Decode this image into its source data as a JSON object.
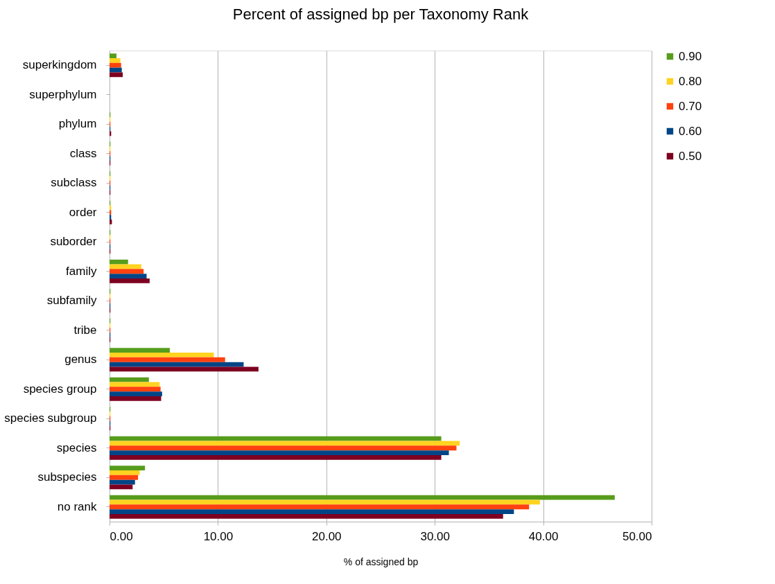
{
  "chart_data": {
    "type": "bar",
    "orientation": "horizontal",
    "title": "Percent of assigned bp per Taxonomy Rank",
    "xlabel": "% of assigned bp",
    "categories": [
      "superkingdom",
      "superphylum",
      "phylum",
      "class",
      "subclass",
      "order",
      "suborder",
      "family",
      "subfamily",
      "tribe",
      "genus",
      "species group",
      "species subgroup",
      "species",
      "subspecies",
      "no rank"
    ],
    "series": [
      {
        "name": "0.90",
        "color": "#579d1c",
        "values": [
          0.64,
          0,
          0.08,
          0.08,
          0.08,
          0.08,
          0.08,
          1.71,
          0.08,
          0.08,
          5.56,
          3.63,
          0.08,
          30.6,
          3.27,
          46.6
        ]
      },
      {
        "name": "0.80",
        "color": "#ffd320",
        "values": [
          1.0,
          0,
          0.08,
          0.08,
          0.08,
          0.15,
          0.08,
          2.93,
          0.08,
          0.08,
          9.62,
          4.62,
          0.08,
          32.3,
          2.78,
          39.7
        ]
      },
      {
        "name": "0.70",
        "color": "#ff420e",
        "values": [
          1.07,
          0,
          0.08,
          0.08,
          0.08,
          0.15,
          0.08,
          3.14,
          0.08,
          0.08,
          10.66,
          4.71,
          0.08,
          32.0,
          2.63,
          38.7
        ]
      },
      {
        "name": "0.60",
        "color": "#004586",
        "values": [
          1.13,
          0,
          0.08,
          0.08,
          0.08,
          0.15,
          0.08,
          3.42,
          0.08,
          0.08,
          12.37,
          4.85,
          0.08,
          31.3,
          2.35,
          37.3
        ]
      },
      {
        "name": "0.50",
        "color": "#7e0021",
        "values": [
          1.22,
          0,
          0.15,
          0.08,
          0.08,
          0.22,
          0.08,
          3.7,
          0.08,
          0.08,
          13.74,
          4.76,
          0.08,
          30.6,
          2.13,
          36.3
        ]
      }
    ],
    "xlim": [
      0,
      50
    ],
    "xticks": [
      {
        "value": 0,
        "label": "0.00"
      },
      {
        "value": 10,
        "label": "10.00"
      },
      {
        "value": 20,
        "label": "20.00"
      },
      {
        "value": 30,
        "label": "30.00"
      },
      {
        "value": 40,
        "label": "40.00"
      },
      {
        "value": 50,
        "label": "50.00"
      }
    ],
    "grid": "x",
    "legend": "right"
  }
}
